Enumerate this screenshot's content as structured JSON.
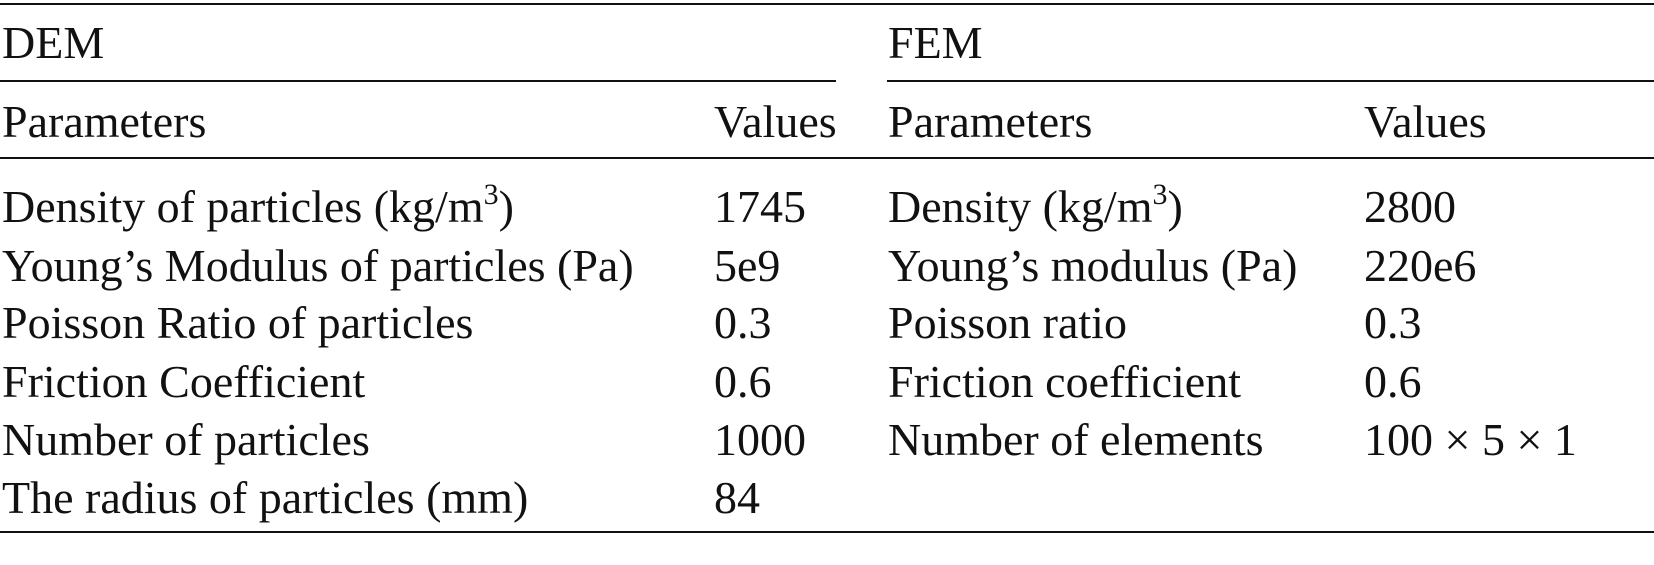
{
  "table": {
    "dem": {
      "heading": "DEM",
      "col_param": "Parameters",
      "col_value": "Values",
      "rows": [
        {
          "param": "Density of particles (kg/m",
          "sup": "3",
          "param_tail": ")",
          "value": "1745"
        },
        {
          "param": "Young’s Modulus of particles (Pa)",
          "sup": "",
          "param_tail": "",
          "value": "5e9"
        },
        {
          "param": "Poisson Ratio of particles",
          "sup": "",
          "param_tail": "",
          "value": "0.3"
        },
        {
          "param": "Friction Coefficient",
          "sup": "",
          "param_tail": "",
          "value": "0.6"
        },
        {
          "param": "Number of particles",
          "sup": "",
          "param_tail": "",
          "value": "1000"
        },
        {
          "param": "The radius of particles (mm)",
          "sup": "",
          "param_tail": "",
          "value": "84"
        }
      ]
    },
    "fem": {
      "heading": "FEM",
      "col_param": "Parameters",
      "col_value": "Values",
      "rows": [
        {
          "param": "Density (kg/m",
          "sup": "3",
          "param_tail": ")",
          "value": "2800"
        },
        {
          "param": "Young’s modulus (Pa)",
          "sup": "",
          "param_tail": "",
          "value": "220e6"
        },
        {
          "param": "Poisson ratio",
          "sup": "",
          "param_tail": "",
          "value": "0.3"
        },
        {
          "param": "Friction coefficient",
          "sup": "",
          "param_tail": "",
          "value": "0.6"
        },
        {
          "param": "Number of elements",
          "sup": "",
          "param_tail": "",
          "value": "100 × 5 × 1"
        }
      ]
    }
  }
}
